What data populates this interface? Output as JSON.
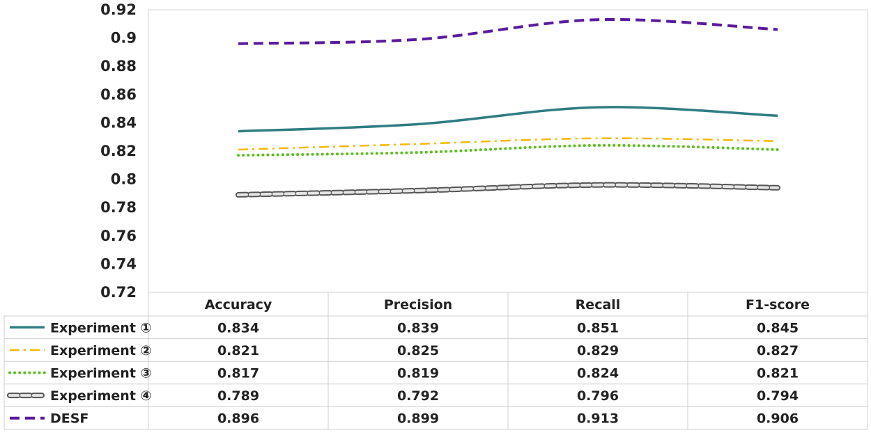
{
  "chart_data": {
    "type": "line",
    "title": "",
    "xlabel": "",
    "ylabel": "",
    "categories": [
      "Accuracy",
      "Precision",
      "Recall",
      "F1-score"
    ],
    "ylim": [
      0.72,
      0.92
    ],
    "yticks": [
      "0.92",
      "0.9",
      "0.88",
      "0.86",
      "0.84",
      "0.82",
      "0.8",
      "0.78",
      "0.76",
      "0.74",
      "0.72"
    ],
    "grid": false,
    "legend": "data-table",
    "series": [
      {
        "name": "Experiment ①",
        "values": [
          0.834,
          0.839,
          0.851,
          0.845
        ],
        "labels": [
          "0.834",
          "0.839",
          "0.851",
          "0.845"
        ],
        "color": "#2e7d82",
        "style": "solid"
      },
      {
        "name": "Experiment ②",
        "values": [
          0.821,
          0.825,
          0.829,
          0.827
        ],
        "labels": [
          "0.821",
          "0.825",
          "0.829",
          "0.827"
        ],
        "color": "#f5b800",
        "style": "dash-dot"
      },
      {
        "name": "Experiment ③",
        "values": [
          0.817,
          0.819,
          0.824,
          0.821
        ],
        "labels": [
          "0.817",
          "0.819",
          "0.824",
          "0.821"
        ],
        "color": "#5cbf1e",
        "style": "dotted"
      },
      {
        "name": "Experiment ④",
        "values": [
          0.789,
          0.792,
          0.796,
          0.794
        ],
        "labels": [
          "0.789",
          "0.792",
          "0.796",
          "0.794"
        ],
        "color": "#555555",
        "style": "hollow-dash"
      },
      {
        "name": "DESF",
        "values": [
          0.896,
          0.899,
          0.913,
          0.906
        ],
        "labels": [
          "0.896",
          "0.899",
          "0.913",
          "0.906"
        ],
        "color": "#5a1a9e",
        "style": "dashed"
      }
    ]
  }
}
